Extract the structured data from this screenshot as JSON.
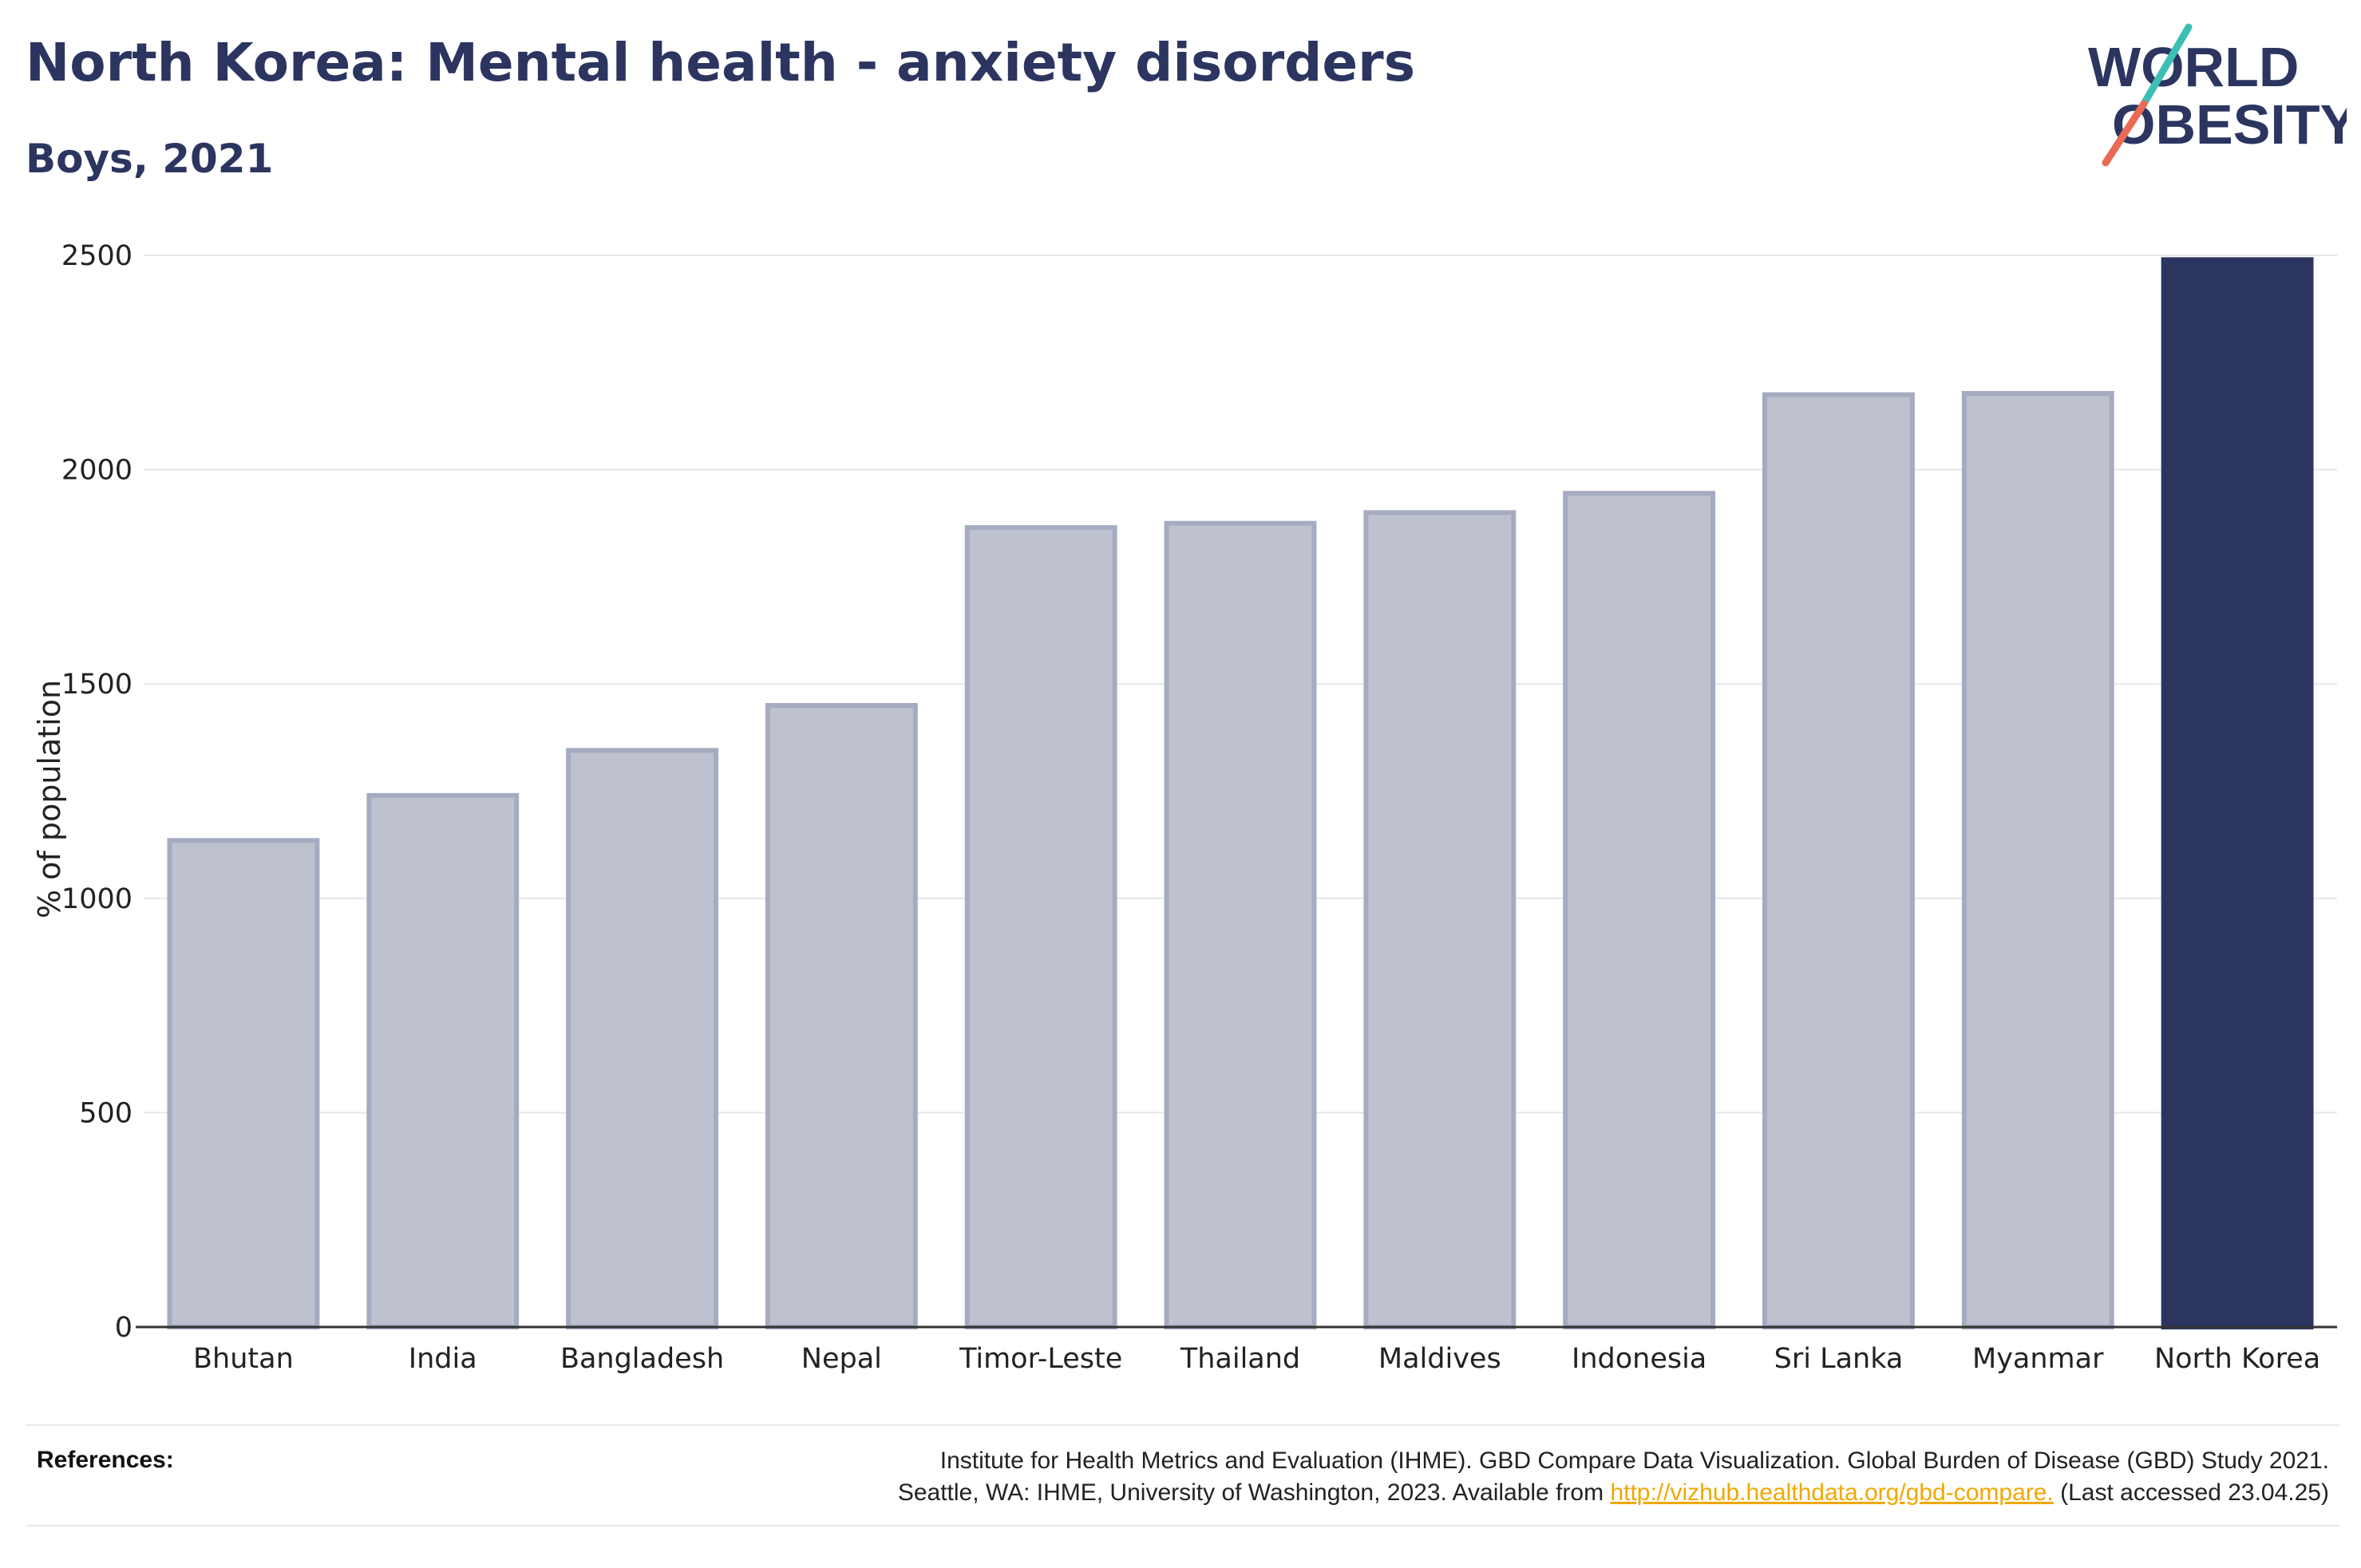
{
  "header": {
    "title": "North Korea: Mental health - anxiety disorders",
    "subtitle": "Boys, 2021"
  },
  "logo": {
    "line1": "WORLD",
    "line2": "OBESITY"
  },
  "colors": {
    "highlight": "#2b3560",
    "other": "#bec2cf",
    "other_border": "#a5abc1",
    "text": "#2b3560"
  },
  "chart_data": {
    "type": "bar",
    "categories": [
      "Bhutan",
      "India",
      "Bangladesh",
      "Nepal",
      "Timor-Leste",
      "Thailand",
      "Maldives",
      "Indonesia",
      "Sri Lanka",
      "Myanmar",
      "North Korea"
    ],
    "values": [
      1135,
      1240,
      1345,
      1450,
      1865,
      1875,
      1900,
      1945,
      2175,
      2178,
      2490
    ],
    "highlight": "North Korea",
    "ylabel": "% of population",
    "ylim": [
      0,
      2500
    ],
    "yticks": [
      0,
      500,
      1000,
      1500,
      2000,
      2500
    ],
    "grid": true
  },
  "references": {
    "label": "References:",
    "line1": "Institute for Health Metrics and Evaluation (IHME). GBD Compare Data Visualization. Global Burden of Disease (GBD) Study 2021.",
    "line2_prefix": "Seattle, WA: IHME, University of Washington, 2023. Available from ",
    "link": "http://vizhub.healthdata.org/gbd-compare.",
    "line2_suffix": " (Last accessed 23.04.25)"
  }
}
